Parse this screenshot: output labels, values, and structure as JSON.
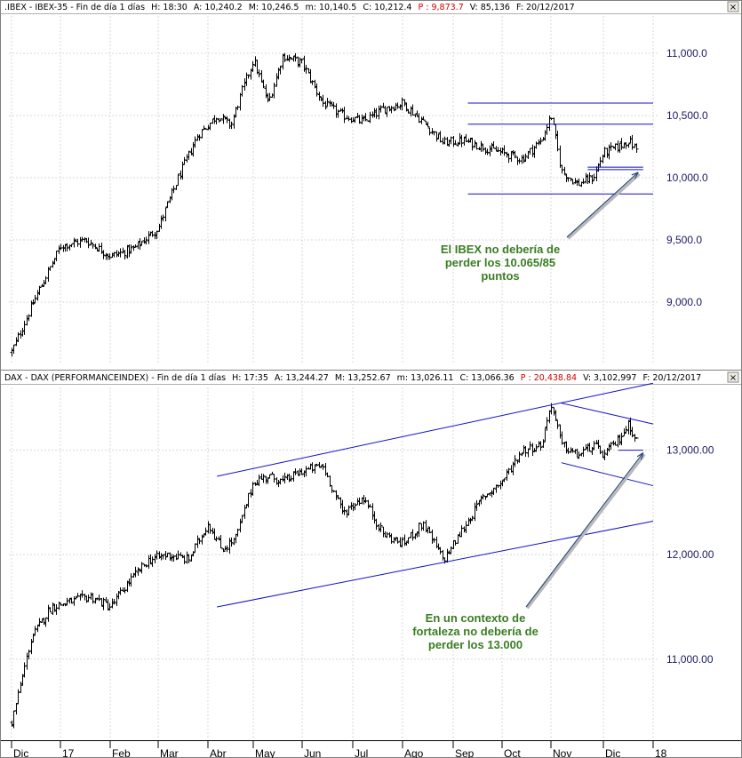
{
  "window": {
    "close_symbol": "×",
    "panels": [
      {
        "header": {
          "name": ".IBEX - IBEX-35 - Fin de día 1 días",
          "time": "H: 18:30",
          "open": "A: 10,240.2",
          "high": "M: 10,246.5",
          "low": "m: 10,140.5",
          "close": "C: 10,212.4",
          "points": "P : 9,873.7",
          "volume": "V: 85,136",
          "date": "F: 20/12/2017"
        }
      },
      {
        "header": {
          "name": "DAX - DAX (PERFORMANCEINDEX) - Fin de día 1 días",
          "time": "H: 17:35",
          "open": "A: 13,244.27",
          "high": "M: 13,252.67",
          "low": "m: 13,026.11",
          "close": "C: 13,066.36",
          "points": "P : 20,438.84",
          "volume": "V: 3,102,997",
          "date": "F: 20/12/2017"
        }
      }
    ]
  },
  "chart_data": [
    {
      "type": "ohlc",
      "ylim": [
        8500,
        11300
      ],
      "y_ticks": [
        {
          "value": 9000,
          "label": "9,000.0"
        },
        {
          "value": 9500,
          "label": "9,500.0"
        },
        {
          "value": 10000,
          "label": "10,000.0"
        },
        {
          "value": 10500,
          "label": "10,500.0"
        },
        {
          "value": 11000,
          "label": "11,000.0"
        }
      ],
      "x_months": [
        "Dic",
        "17",
        "Feb",
        "Mar",
        "Abr",
        "May",
        "Jun",
        "Jul",
        "Ago",
        "Sep",
        "Oct",
        "Nov",
        "Dic",
        "18"
      ],
      "x_month_index": [
        0,
        1,
        2,
        3,
        4,
        5,
        6,
        7,
        8,
        9,
        10,
        11,
        12,
        13
      ],
      "series": {
        "x": [
          0,
          0.5,
          1,
          1.5,
          2,
          2.5,
          3,
          3.4,
          3.8,
          4.2,
          4.5,
          4.75,
          5,
          5.3,
          5.6,
          6,
          6.4,
          6.8,
          7.2,
          7.6,
          8,
          8.4,
          8.8,
          9.2,
          9.6,
          10,
          10.4,
          10.8,
          11,
          11.2,
          11.5,
          11.8,
          12,
          12.3,
          12.5,
          12.7
        ],
        "close": [
          8600,
          9050,
          9450,
          9500,
          9370,
          9430,
          9600,
          10000,
          10350,
          10500,
          10420,
          10700,
          10950,
          10600,
          10980,
          10920,
          10600,
          10500,
          10450,
          10550,
          10600,
          10450,
          10280,
          10300,
          10250,
          10200,
          10150,
          10300,
          10500,
          10050,
          9950,
          10000,
          10200,
          10250,
          10300,
          10212
        ]
      },
      "annotation": {
        "lines": [
          "El IBEX no debería de",
          "perder los 10.065/85",
          "puntos"
        ],
        "arrow_target": {
          "x": 12.7,
          "y": 10065
        }
      },
      "levels": [
        {
          "x_from": 9.3,
          "x_to": 13,
          "y": 10600
        },
        {
          "x_from": 9.3,
          "x_to": 13,
          "y": 10430
        },
        {
          "x_from": 9.3,
          "x_to": 13,
          "y": 9870
        },
        {
          "x_from": 11.7,
          "x_to": 12.8,
          "y": 10085
        },
        {
          "x_from": 11.7,
          "x_to": 12.8,
          "y": 10065
        }
      ]
    },
    {
      "type": "ohlc",
      "ylim": [
        10250,
        13600
      ],
      "y_ticks": [
        {
          "value": 11000,
          "label": "11,000.00"
        },
        {
          "value": 12000,
          "label": "12,000.00"
        },
        {
          "value": 13000,
          "label": "13,000.00"
        }
      ],
      "x_months": [
        "Dic",
        "17",
        "Feb",
        "Mar",
        "Abr",
        "May",
        "Jun",
        "Jul",
        "Ago",
        "Sep",
        "Oct",
        "Nov",
        "Dic",
        "18"
      ],
      "x_month_index": [
        0,
        1,
        2,
        3,
        4,
        5,
        6,
        7,
        8,
        9,
        10,
        11,
        12,
        13
      ],
      "series": {
        "x": [
          0,
          0.4,
          0.8,
          1.2,
          1.6,
          2,
          2.4,
          2.8,
          3.2,
          3.6,
          4,
          4.3,
          4.6,
          5,
          5.3,
          5.6,
          6,
          6.4,
          6.8,
          7.2,
          7.6,
          8,
          8.4,
          8.8,
          9.2,
          9.6,
          10,
          10.4,
          10.8,
          11,
          11.2,
          11.5,
          11.8,
          12,
          12.3,
          12.5,
          12.7
        ],
        "close": [
          10400,
          11200,
          11500,
          11550,
          11600,
          11500,
          11750,
          11950,
          12000,
          11950,
          12300,
          12050,
          12150,
          12700,
          12750,
          12700,
          12800,
          12850,
          12400,
          12550,
          12200,
          12100,
          12300,
          11950,
          12250,
          12550,
          12700,
          13000,
          13050,
          13450,
          13050,
          12950,
          13050,
          12950,
          13100,
          13250,
          13066
        ]
      },
      "annotation": {
        "lines": [
          "En un contexto de",
          "fortaleza no debería de",
          "perder los 13.000"
        ],
        "arrow_target": {
          "x": 12.8,
          "y": 13000
        }
      },
      "trend_lines": [
        {
          "x1": 4.2,
          "y1": 12750,
          "x2": 13,
          "y2": 13640
        },
        {
          "x1": 4.2,
          "y1": 11500,
          "x2": 13,
          "y2": 12320
        },
        {
          "x1": 11.2,
          "y1": 13450,
          "x2": 13,
          "y2": 13250
        },
        {
          "x1": 11.2,
          "y1": 12880,
          "x2": 13,
          "y2": 12660
        },
        {
          "x1": 12.3,
          "y1": 13000,
          "x2": 12.8,
          "y2": 13000
        }
      ]
    }
  ]
}
